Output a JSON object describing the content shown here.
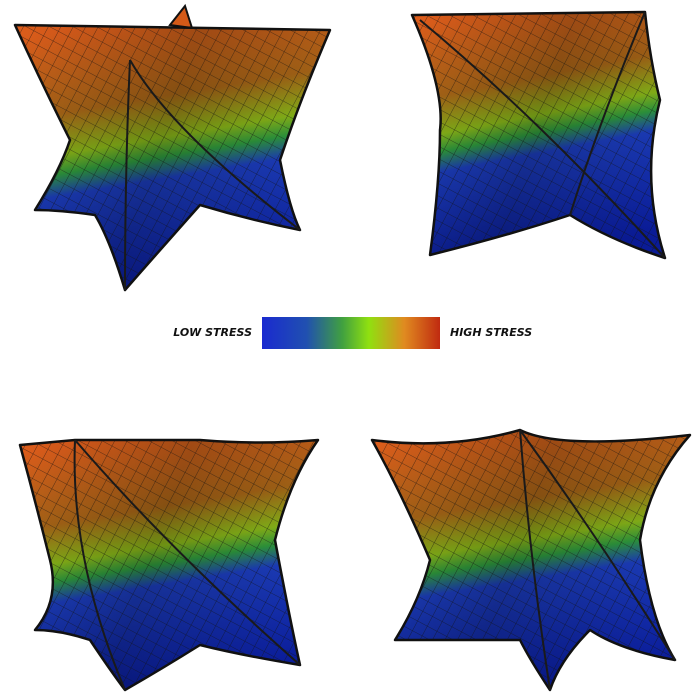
{
  "legend": {
    "low_label": "LOW STRESS",
    "high_label": "HIGH STRESS"
  }
}
